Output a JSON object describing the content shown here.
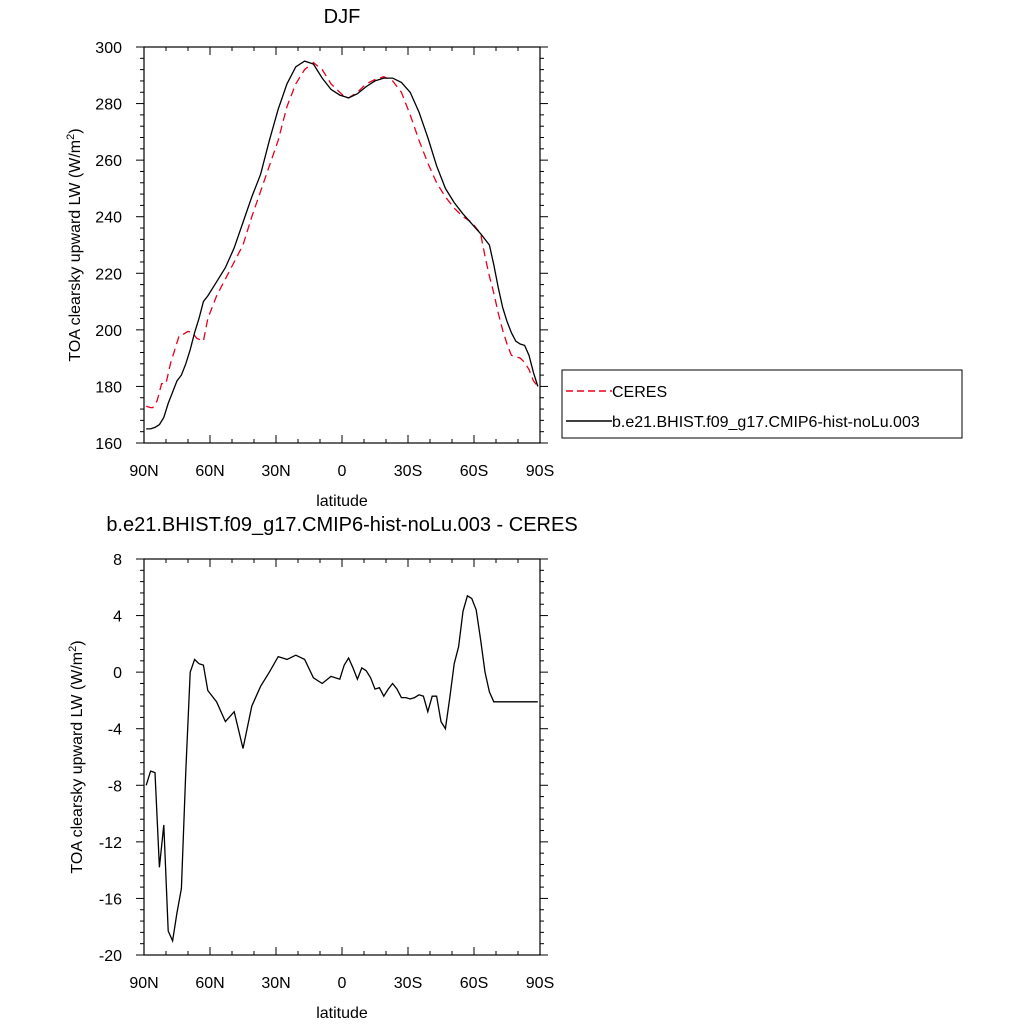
{
  "chart_data": [
    {
      "type": "line",
      "title": "DJF",
      "xlabel": "latitude",
      "ylabel": "TOA clearsky upward LW (W/m",
      "ylabel_sup": "2",
      "ylabel_tail": ")",
      "xlim": [
        90,
        -90
      ],
      "ylim": [
        160,
        300
      ],
      "xticks": [
        90,
        60,
        30,
        0,
        -30,
        -60,
        -90
      ],
      "xtick_labels": [
        "90N",
        "60N",
        "30N",
        "0",
        "30S",
        "60S",
        "90S"
      ],
      "yticks": [
        160,
        180,
        200,
        220,
        240,
        260,
        280,
        300
      ],
      "ytick_labels": [
        "160",
        "180",
        "200",
        "220",
        "240",
        "260",
        "280",
        "300"
      ],
      "legend_position": "right",
      "series": [
        {
          "name": "CERES",
          "style": "dashed",
          "color": "#e8001c",
          "x": [
            89,
            87,
            86,
            84,
            82,
            80,
            78,
            76,
            74,
            72,
            70,
            68,
            66,
            63,
            61,
            57,
            53,
            49,
            45,
            41,
            37,
            33,
            29,
            25,
            21,
            17,
            13,
            9,
            5,
            1,
            -1,
            -3,
            -7,
            -11,
            -15,
            -19,
            -23,
            -27,
            -31,
            -35,
            -39,
            -43,
            -47,
            -51,
            -55,
            -59,
            -63,
            -65,
            -67,
            -69,
            -71,
            -73,
            -75,
            -77,
            -79,
            -81,
            -83,
            -85,
            -87,
            -89
          ],
          "y": [
            173,
            172.5,
            172.5,
            175,
            181,
            181,
            188,
            193,
            198,
            198.5,
            199.5,
            199,
            197,
            196,
            204,
            212,
            218,
            224,
            230,
            240,
            249,
            258,
            267,
            279,
            287,
            292,
            294.5,
            292,
            287,
            284,
            282.5,
            282,
            284,
            287,
            288.5,
            289.5,
            288,
            284,
            276,
            267,
            259,
            252,
            247,
            243,
            240,
            238,
            234,
            226,
            219,
            213,
            206,
            200,
            195,
            191,
            190.5,
            190,
            188.5,
            186,
            182,
            180
          ]
        },
        {
          "name": "b.e21.BHIST.f09_g17.CMIP6-hist-noLu.003",
          "style": "solid",
          "color": "#000000",
          "x": [
            89,
            87,
            85,
            83,
            81,
            79,
            77,
            75,
            73,
            71,
            69,
            67,
            65,
            63,
            61,
            57,
            53,
            49,
            45,
            41,
            37,
            33,
            29,
            25,
            21,
            17,
            13,
            9,
            5,
            1,
            -1,
            -3,
            -7,
            -11,
            -15,
            -19,
            -23,
            -27,
            -31,
            -35,
            -39,
            -43,
            -47,
            -51,
            -55,
            -59,
            -63,
            -67,
            -69,
            -71,
            -73,
            -75,
            -77,
            -79,
            -81,
            -83,
            -85,
            -87,
            -89
          ],
          "y": [
            165,
            165,
            165.5,
            166.5,
            169,
            174,
            178,
            182,
            184,
            188,
            193,
            199,
            204,
            210,
            212,
            217,
            222,
            229,
            238,
            247,
            255,
            267,
            278,
            287,
            293,
            295,
            294,
            289,
            285,
            283,
            282.5,
            282,
            283.5,
            286,
            288,
            289,
            289,
            287.5,
            284,
            277,
            268,
            258,
            250,
            245,
            241,
            237.5,
            234,
            230,
            223,
            215,
            208,
            203,
            199,
            196,
            195,
            194.5,
            191,
            185,
            180
          ]
        }
      ]
    },
    {
      "type": "line",
      "title": "b.e21.BHIST.f09_g17.CMIP6-hist-noLu.003 - CERES",
      "xlabel": "latitude",
      "ylabel": "TOA clearsky upward LW (W/m",
      "ylabel_sup": "2",
      "ylabel_tail": ")",
      "xlim": [
        90,
        -90
      ],
      "ylim": [
        -20,
        8
      ],
      "xticks": [
        90,
        60,
        30,
        0,
        -30,
        -60,
        -90
      ],
      "xtick_labels": [
        "90N",
        "60N",
        "30N",
        "0",
        "30S",
        "60S",
        "90S"
      ],
      "yticks": [
        -20,
        -16,
        -12,
        -8,
        -4,
        0,
        4,
        8
      ],
      "ytick_labels": [
        "-20",
        "-16",
        "-12",
        "-8",
        "-4",
        "0",
        "4",
        "8"
      ],
      "series": [
        {
          "style": "solid",
          "color": "#000000",
          "x": [
            89,
            87,
            85,
            83,
            81,
            79,
            77,
            75,
            73,
            71,
            69,
            67,
            65,
            63,
            61,
            57,
            53,
            49,
            45,
            41,
            37,
            33,
            29,
            25,
            21,
            17,
            13,
            9,
            5,
            1,
            -1,
            -3,
            -5,
            -7,
            -9,
            -11,
            -13,
            -15,
            -17,
            -19,
            -21,
            -23,
            -25,
            -27,
            -29,
            -31,
            -33,
            -35,
            -37,
            -39,
            -41,
            -43,
            -45,
            -47,
            -49,
            -51,
            -53,
            -55,
            -57,
            -59,
            -61,
            -63,
            -65,
            -67,
            -69,
            -71,
            -73,
            -75,
            -77,
            -79,
            -81,
            -83,
            -85,
            -87,
            -89
          ],
          "y": [
            -8,
            -7,
            -7.1,
            -13.8,
            -10.8,
            -18.3,
            -19,
            -17,
            -15.3,
            -7,
            0,
            0.9,
            0.6,
            0.5,
            -1.3,
            -2.1,
            -3.5,
            -2.8,
            -5.4,
            -2.4,
            -1,
            0,
            1.1,
            0.9,
            1.2,
            0.9,
            -0.4,
            -0.8,
            -0.3,
            -0.5,
            0.5,
            1,
            0.3,
            -0.5,
            0.3,
            0.1,
            -0.4,
            -1.2,
            -1.1,
            -1.7,
            -1.2,
            -0.8,
            -1.2,
            -1.8,
            -1.8,
            -1.9,
            -1.8,
            -1.6,
            -1.7,
            -2.8,
            -1.7,
            -1.7,
            -3.5,
            -4,
            -1.8,
            0.6,
            1.8,
            4.3,
            5.4,
            5.2,
            4.4,
            2.3,
            0,
            -1.4,
            -2.1,
            -2.1,
            -2.1,
            -2.1,
            -2.1,
            -2.1,
            -2.1,
            -2.1,
            -2.1,
            -2.1,
            -2.1
          ]
        }
      ]
    }
  ]
}
